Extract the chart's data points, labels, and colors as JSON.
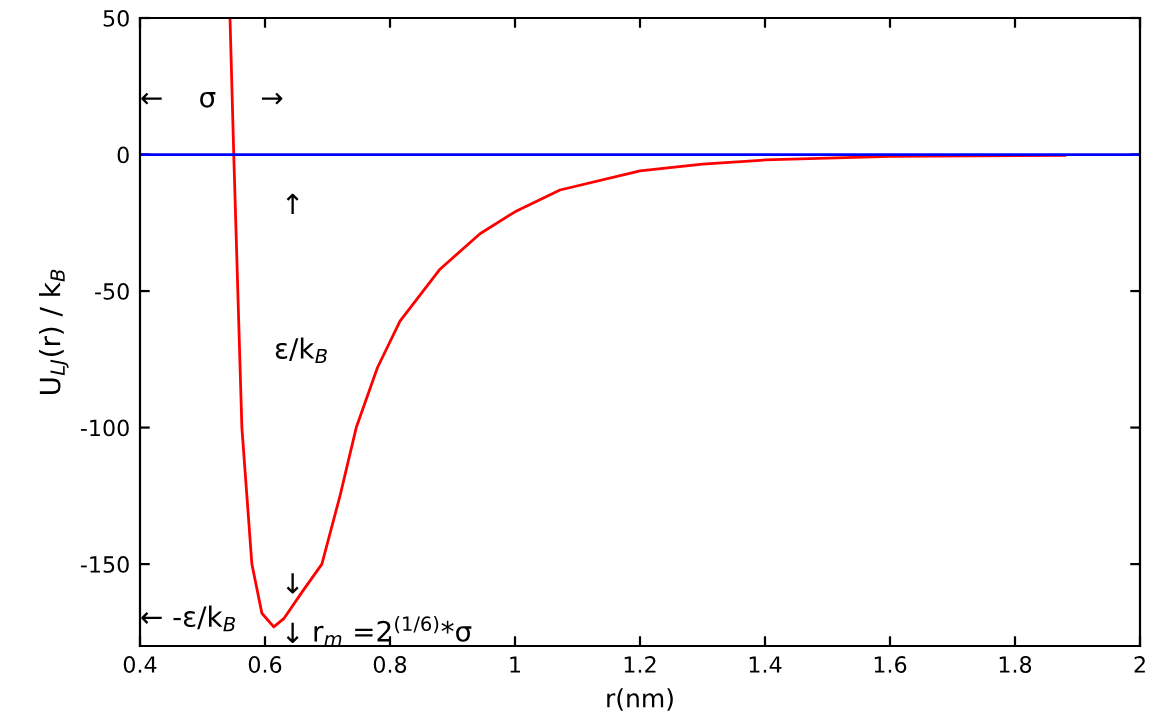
{
  "chart_data": {
    "type": "line",
    "xlabel": "r(nm)",
    "ylabel": "U$_{LJ}$(r) / k$_{B}$",
    "x": [
      0.544,
      0.55,
      0.563,
      0.579,
      0.595,
      0.614,
      0.63,
      0.66,
      0.691,
      0.72,
      0.746,
      0.78,
      0.816,
      0.88,
      0.944,
      1.0,
      1.072,
      1.2,
      1.3,
      1.4,
      1.6,
      1.88
    ],
    "series": [
      {
        "color": "#ff0000",
        "values": [
          50,
          0,
          -100,
          -150,
          -168,
          -173,
          -170,
          -160,
          -150,
          -125,
          -100,
          -78,
          -61,
          -42,
          -29,
          -21,
          -13,
          -6,
          -3.5,
          -2,
          -0.7,
          -0.3
        ]
      }
    ],
    "xlim": [
      0.4,
      2
    ],
    "xticks": [
      0.4,
      0.6,
      0.8,
      1,
      1.2,
      1.4,
      1.6,
      1.8,
      2
    ],
    "ylim": [
      -180,
      50
    ],
    "yticks": [
      -150,
      -100,
      -50,
      0,
      50
    ],
    "ref_lines": [
      {
        "axis": "y",
        "value": 0,
        "color": "#0000ff"
      }
    ],
    "annotations": [
      "←    σ     →",
      "↑",
      "ε/k$_{B}$",
      "↓",
      "↓",
      "← -ε/k$_{B}$",
      "r$_{m}$ =2$^{(1/6)}$*σ"
    ],
    "grid": false,
    "legend": false
  }
}
